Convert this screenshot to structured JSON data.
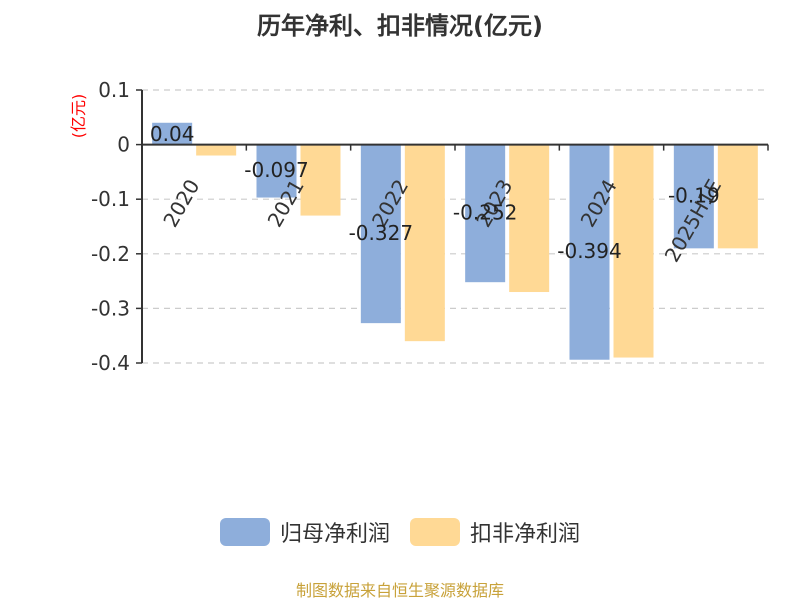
{
  "chart_data": {
    "type": "bar",
    "title": "历年净利、扣非情况(亿元)",
    "ylabel": "(亿元)",
    "categories": [
      "2020",
      "2021",
      "2022",
      "2023",
      "2024",
      "2025H1E"
    ],
    "series": [
      {
        "name": "归母净利润",
        "color": "#8eaedb",
        "values": [
          0.04,
          -0.097,
          -0.327,
          -0.252,
          -0.394,
          -0.19
        ],
        "labels": [
          "0.04",
          "-0.097",
          "-0.327",
          "-0.252",
          "-0.394",
          "-0.19"
        ]
      },
      {
        "name": "扣非净利润",
        "color": "#ffd995",
        "values": [
          -0.02,
          -0.13,
          -0.36,
          -0.27,
          -0.39,
          -0.19
        ],
        "labels": []
      }
    ],
    "yticks": [
      0.1,
      0,
      -0.1,
      -0.2,
      -0.3,
      -0.4
    ],
    "ytick_labels": [
      "0.1",
      "0",
      "-0.1",
      "-0.2",
      "-0.3",
      "-0.4"
    ],
    "ylim": [
      -0.4,
      0.1
    ],
    "grid": true,
    "legend_position": "bottom-center"
  },
  "source_note": "制图数据来自恒生聚源数据库",
  "colors": {
    "title": "#333333",
    "axis": "#333333",
    "grid": "#cccccc",
    "ylabel": "#ff0000",
    "source": "#c8a23a"
  }
}
